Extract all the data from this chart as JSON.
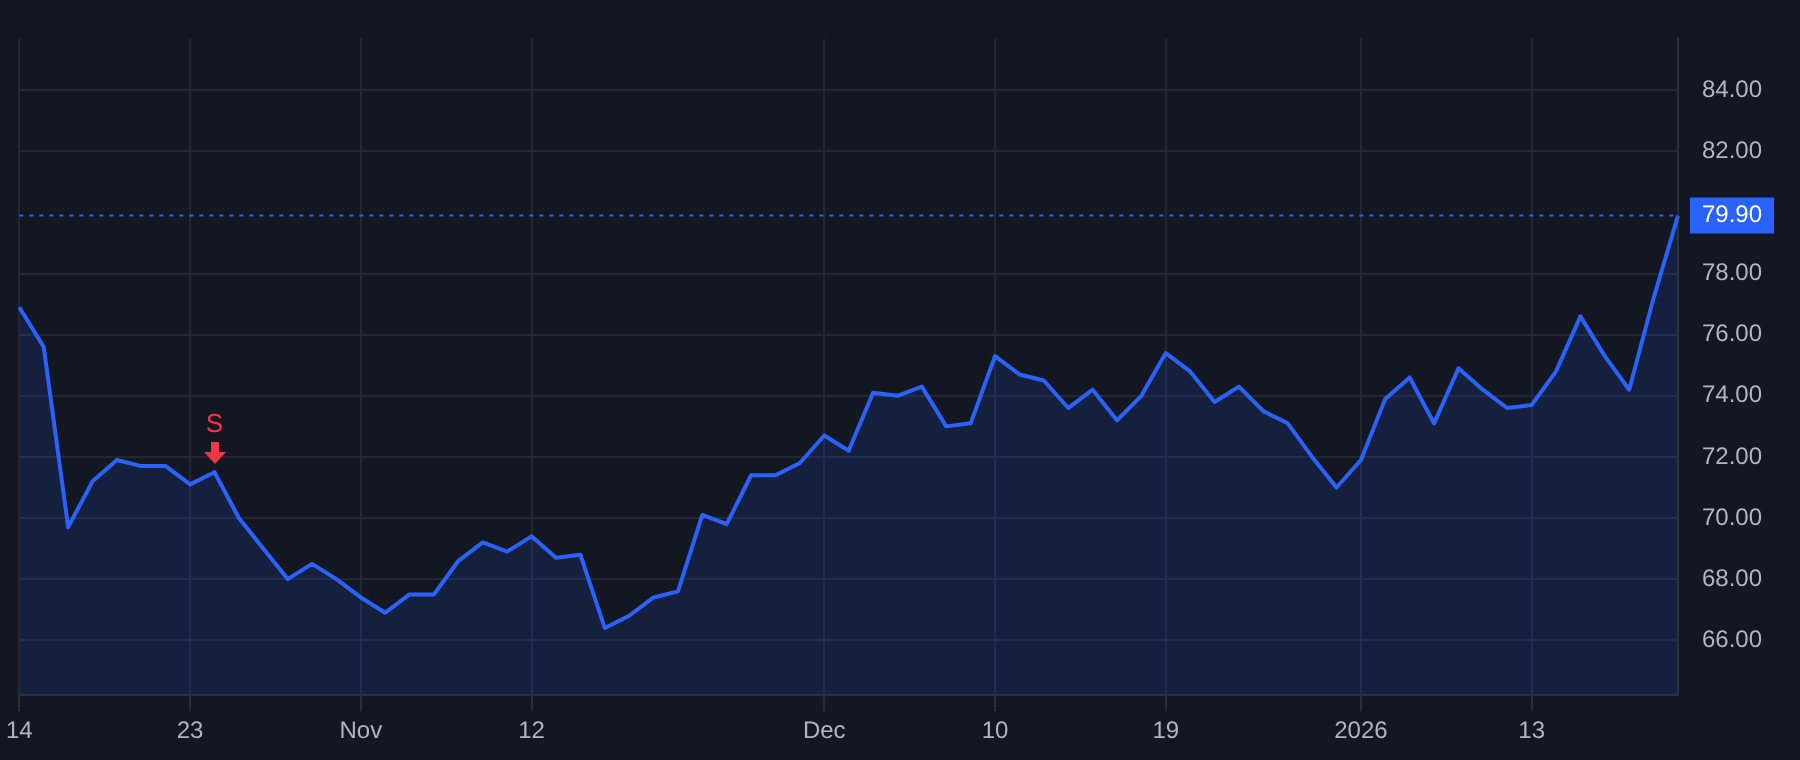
{
  "chart_data": {
    "type": "area",
    "categories": [
      "14",
      null,
      null,
      null,
      null,
      null,
      null,
      "23",
      null,
      null,
      null,
      null,
      null,
      null,
      "Nov",
      null,
      null,
      null,
      null,
      null,
      null,
      "12",
      null,
      null,
      null,
      null,
      null,
      null,
      null,
      null,
      null,
      null,
      null,
      "Dec",
      null,
      null,
      null,
      null,
      null,
      null,
      "10",
      null,
      null,
      null,
      null,
      null,
      null,
      "19",
      null,
      null,
      null,
      null,
      null,
      null,
      null,
      "2026",
      null,
      null,
      null,
      null,
      null,
      null,
      "13",
      null,
      null,
      null,
      null,
      null,
      null
    ],
    "series": [
      {
        "color": "#2962ff",
        "values": [
          76.9,
          75.6,
          69.7,
          71.2,
          71.9,
          71.7,
          71.7,
          71.1,
          71.5,
          70.0,
          69.0,
          68.0,
          68.5,
          68.0,
          67.4,
          66.9,
          67.5,
          67.5,
          68.6,
          69.2,
          68.9,
          69.4,
          68.7,
          68.8,
          66.4,
          66.8,
          67.4,
          67.6,
          70.1,
          69.8,
          71.4,
          71.4,
          71.8,
          72.7,
          72.2,
          74.1,
          74.0,
          74.3,
          73.0,
          73.1,
          75.3,
          74.7,
          74.5,
          73.6,
          74.2,
          73.2,
          74.0,
          75.4,
          74.8,
          73.8,
          74.3,
          73.5,
          73.1,
          72.0,
          71.0,
          71.9,
          73.9,
          74.6,
          73.1,
          74.9,
          74.2,
          73.6,
          73.7,
          74.8,
          76.6,
          75.3,
          74.2,
          77.2,
          79.9
        ]
      }
    ],
    "ylim": [
      64.2,
      85.7
    ],
    "yticks": [
      {
        "value": 66,
        "label": "66.00"
      },
      {
        "value": 68,
        "label": "68.00"
      },
      {
        "value": 70,
        "label": "70.00"
      },
      {
        "value": 72,
        "label": "72.00"
      },
      {
        "value": 74,
        "label": "74.00"
      },
      {
        "value": 76,
        "label": "76.00"
      },
      {
        "value": 78,
        "label": "78.00"
      },
      {
        "value": 82,
        "label": "82.00"
      },
      {
        "value": 84,
        "label": "84.00"
      }
    ],
    "ref_lines": [
      {
        "axis": "y",
        "value": 79.9,
        "label": "79.90",
        "color": "#2962ff",
        "line_style": "dotted"
      }
    ],
    "annotations": [
      {
        "text": "S",
        "y": 71.5
      }
    ],
    "grid": true,
    "legend": false,
    "marker": "none",
    "line_style": "solid"
  }
}
